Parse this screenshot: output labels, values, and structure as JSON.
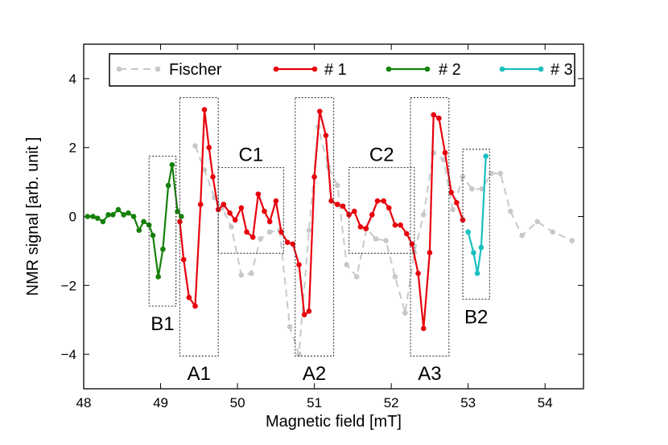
{
  "chart_data": {
    "type": "line",
    "title": "",
    "xlabel": "Magnetic field [mT]",
    "ylabel": "NMR signal [arb. unit ]",
    "xlim": [
      48,
      54.5
    ],
    "ylim": [
      -5,
      5
    ],
    "xticks": [
      48,
      49,
      50,
      51,
      52,
      53,
      54
    ],
    "yticks": [
      -4,
      -2,
      0,
      2,
      4
    ],
    "xtick_labels": [
      "48",
      "49",
      "50",
      "51",
      "52",
      "53",
      "54"
    ],
    "ytick_labels": [
      "−4",
      "−2",
      "0",
      "2",
      "4"
    ],
    "legend_position": "top",
    "series": [
      {
        "name": "Fischer",
        "color": "#c8c8c8",
        "style": "dashed",
        "x": [
          49.45,
          49.57,
          49.7,
          49.8,
          49.92,
          50.05,
          50.18,
          50.3,
          50.42,
          50.55,
          50.68,
          50.8,
          50.93,
          51.05,
          51.18,
          51.3,
          51.42,
          51.55,
          51.68,
          51.8,
          51.93,
          52.05,
          52.18,
          52.3,
          52.42,
          52.55,
          52.68,
          52.8,
          52.93,
          53.05,
          53.18,
          53.3,
          53.42,
          53.55,
          53.7,
          53.9,
          54.1,
          54.35
        ],
        "y": [
          2.05,
          1.35,
          0.55,
          0.25,
          -0.3,
          -1.7,
          -1.65,
          -0.65,
          -0.45,
          -0.4,
          -3.2,
          -4.0,
          -0.4,
          2.6,
          1.45,
          0.9,
          -1.4,
          -1.75,
          -0.35,
          -0.65,
          -0.7,
          -1.75,
          -2.8,
          -1.05,
          0.05,
          1.85,
          1.65,
          0.2,
          1.15,
          0.8,
          0.8,
          1.25,
          1.25,
          0.15,
          -0.55,
          -0.15,
          -0.45,
          -0.7
        ]
      },
      {
        "name": "# 1",
        "color": "#e8000b",
        "style": "solid",
        "x": [
          49.25,
          49.3,
          49.37,
          49.45,
          49.52,
          49.57,
          49.63,
          49.68,
          49.75,
          49.82,
          49.9,
          49.97,
          50.05,
          50.12,
          50.2,
          50.27,
          50.35,
          50.42,
          50.5,
          50.57,
          50.65,
          50.72,
          50.8,
          50.87,
          50.93,
          51.0,
          51.07,
          51.15,
          51.22,
          51.3,
          51.37,
          51.45,
          51.52,
          51.6,
          51.67,
          51.75,
          51.82,
          51.9,
          51.97,
          52.05,
          52.12,
          52.2,
          52.27,
          52.35,
          52.42,
          52.5,
          52.55,
          52.62,
          52.7,
          52.78,
          52.85,
          52.93
        ],
        "y": [
          -0.15,
          -1.25,
          -2.35,
          -2.6,
          0.35,
          3.1,
          2.0,
          1.15,
          0.2,
          0.35,
          0.1,
          -0.1,
          0.25,
          -0.45,
          -0.6,
          0.65,
          0.15,
          -0.15,
          0.45,
          -0.45,
          -0.75,
          -0.8,
          -1.4,
          -2.85,
          -2.75,
          1.15,
          3.05,
          2.35,
          0.45,
          0.35,
          0.3,
          0.05,
          0.15,
          -0.3,
          -0.35,
          0.05,
          0.45,
          0.45,
          0.25,
          -0.25,
          -0.25,
          -0.5,
          -0.8,
          -1.65,
          -3.25,
          -1.05,
          2.95,
          2.85,
          1.85,
          0.7,
          0.4,
          -0.1
        ]
      },
      {
        "name": "# 2",
        "color": "#15800a",
        "style": "solid",
        "x": [
          48.05,
          48.12,
          48.18,
          48.25,
          48.32,
          48.38,
          48.45,
          48.52,
          48.58,
          48.65,
          48.72,
          48.78,
          48.85,
          48.9,
          48.97,
          49.03,
          49.1,
          49.15,
          49.22,
          49.27
        ],
        "y": [
          0.0,
          0.0,
          -0.05,
          -0.15,
          0.05,
          0.05,
          0.2,
          0.05,
          0.1,
          0.0,
          -0.4,
          -0.15,
          -0.25,
          -0.55,
          -1.75,
          -0.95,
          0.9,
          1.5,
          0.15,
          0.0
        ]
      },
      {
        "name": "# 3",
        "color": "#18bfbf",
        "style": "solid",
        "x": [
          53.0,
          53.07,
          53.12,
          53.17,
          53.23
        ],
        "y": [
          -0.45,
          -1.05,
          -1.65,
          -0.9,
          1.75
        ]
      }
    ],
    "annotations": [
      {
        "label": "A1",
        "x0": 49.25,
        "x1": 49.75,
        "y0": -4.05,
        "y1": 3.45
      },
      {
        "label": "A2",
        "x0": 50.75,
        "x1": 51.25,
        "y0": -4.05,
        "y1": 3.45
      },
      {
        "label": "A3",
        "x0": 52.25,
        "x1": 52.75,
        "y0": -4.05,
        "y1": 3.45
      },
      {
        "label": "B1",
        "x0": 48.85,
        "x1": 49.2,
        "y0": -2.6,
        "y1": 1.75
      },
      {
        "label": "B2",
        "x0": 52.93,
        "x1": 53.28,
        "y0": -2.4,
        "y1": 1.95
      },
      {
        "label": "C1",
        "x0": 49.75,
        "x1": 50.6,
        "y0": -1.07,
        "y1": 1.42
      },
      {
        "label": "C2",
        "x0": 51.45,
        "x1": 52.3,
        "y0": -1.07,
        "y1": 1.42
      }
    ]
  }
}
